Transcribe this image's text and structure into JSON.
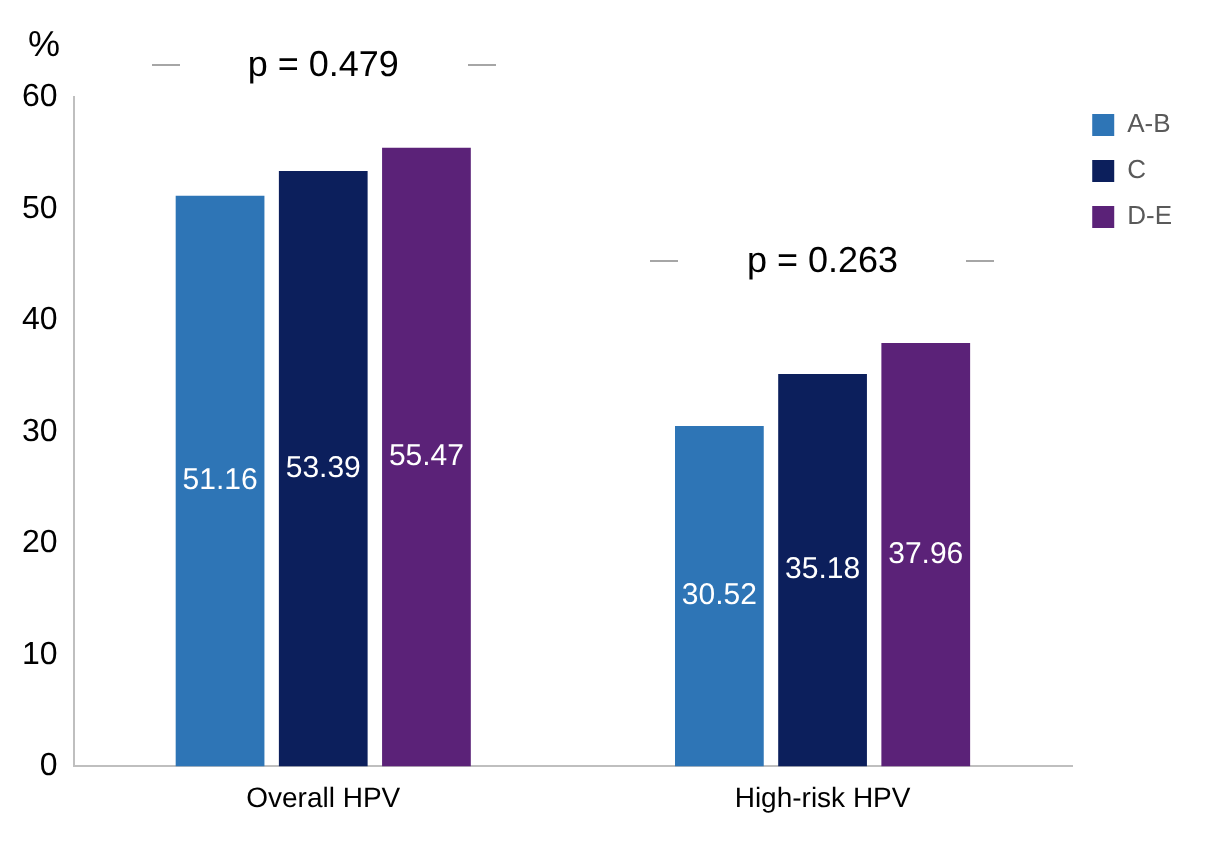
{
  "chart_data": {
    "type": "bar",
    "ylabel": "%",
    "categories": [
      "Overall HPV",
      "High-risk HPV"
    ],
    "series": [
      {
        "name": "A-B",
        "color": "#2e75b6",
        "values": [
          51.16,
          30.52
        ]
      },
      {
        "name": "C",
        "color": "#0c1f5c",
        "values": [
          53.39,
          35.18
        ]
      },
      {
        "name": "D-E",
        "color": "#5b2278",
        "values": [
          55.47,
          37.96
        ]
      }
    ],
    "ylim": [
      0,
      60
    ],
    "yticks": [
      0,
      10,
      20,
      30,
      40,
      50,
      60
    ],
    "grid": false,
    "legend": "top right",
    "data_labels": true,
    "annotations": [
      "p = 0.479",
      "p = 0.263"
    ]
  }
}
